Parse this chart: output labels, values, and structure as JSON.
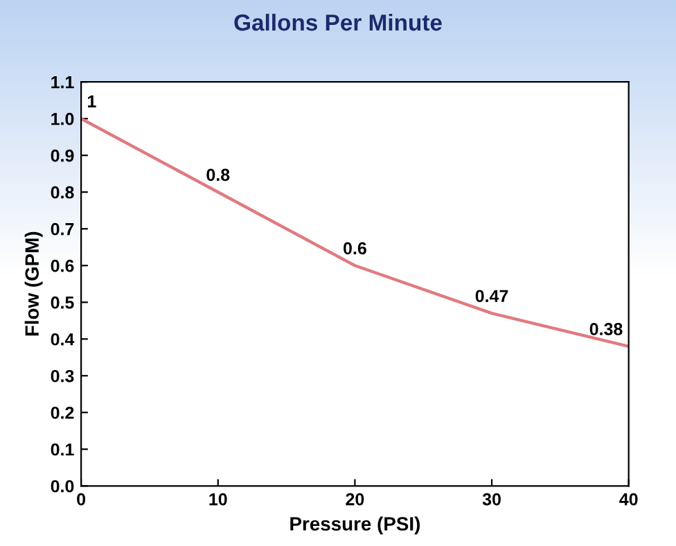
{
  "chart_data": {
    "type": "line",
    "title": "Gallons Per Minute",
    "xlabel": "Pressure (PSI)",
    "ylabel": "Flow (GPM)",
    "x": [
      0,
      10,
      20,
      30,
      40
    ],
    "series": [
      {
        "color": "#e07b80",
        "values": [
          1,
          0.8,
          0.6,
          0.47,
          0.38
        ]
      }
    ],
    "xlim": [
      0,
      40
    ],
    "xticks": [
      0,
      10,
      20,
      30,
      40
    ],
    "ylim": [
      0,
      1.1
    ],
    "yticks": [
      {
        "value": 0,
        "label": "0.0"
      },
      {
        "value": 0.1,
        "label": "0.1"
      },
      {
        "value": 0.2,
        "label": "0.2"
      },
      {
        "value": 0.3,
        "label": "0.3"
      },
      {
        "value": 0.4,
        "label": "0.4"
      },
      {
        "value": 0.5,
        "label": "0.5"
      },
      {
        "value": 0.6,
        "label": "0.6"
      },
      {
        "value": 0.7,
        "label": "0.7"
      },
      {
        "value": 0.8,
        "label": "0.8"
      },
      {
        "value": 0.9,
        "label": "0.9"
      },
      {
        "value": 1.0,
        "label": "1.0"
      },
      {
        "value": 1.1,
        "label": "1.1"
      }
    ],
    "data_labels": true,
    "marker": "none",
    "line_style": "solid",
    "grid": false,
    "legend": false
  }
}
